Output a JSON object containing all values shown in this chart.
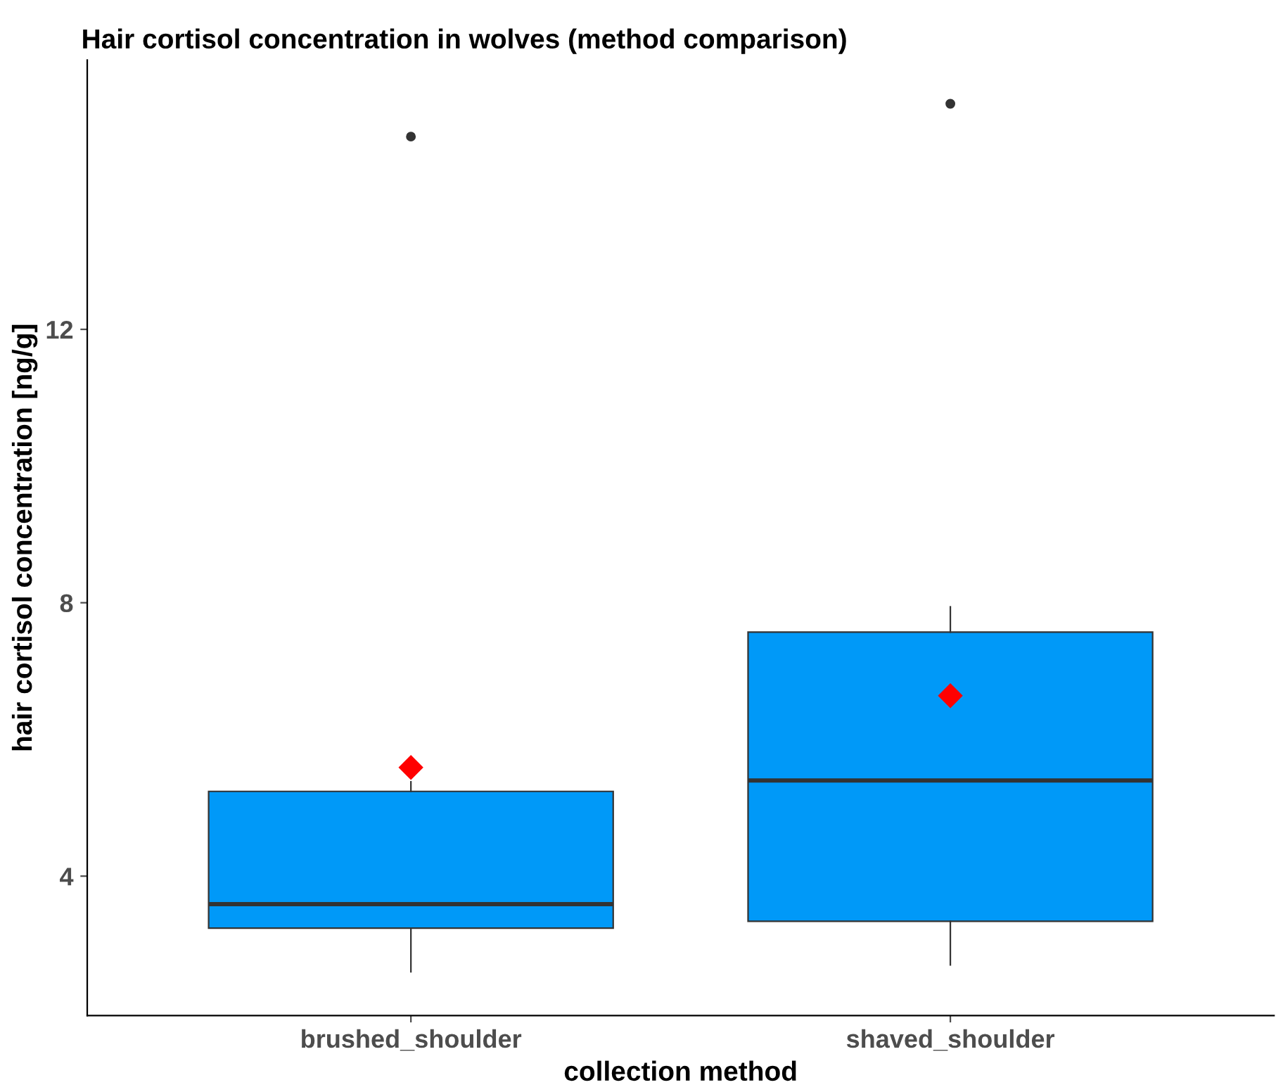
{
  "chart_data": {
    "type": "box",
    "title": "Hair cortisol concentration in wolves (method comparison)",
    "xlabel": "collection method",
    "ylabel": "hair cortisol concentration [ng/g]",
    "categories": [
      "brushed_shoulder",
      "shaved_shoulder"
    ],
    "boxes": [
      {
        "low": 2.6,
        "q1": 3.24,
        "median": 3.59,
        "q3": 5.24,
        "high": 5.38,
        "mean": 5.59,
        "outliers": [
          14.82
        ]
      },
      {
        "low": 2.7,
        "q1": 3.34,
        "median": 5.4,
        "q3": 7.57,
        "high": 7.94,
        "mean": 6.64,
        "outliers": [
          15.3
        ]
      }
    ],
    "color": "#0099f8",
    "ylim": [
      1.96,
      15.94
    ],
    "yticks": [
      4,
      8,
      12
    ],
    "grid": false,
    "legend": false
  }
}
